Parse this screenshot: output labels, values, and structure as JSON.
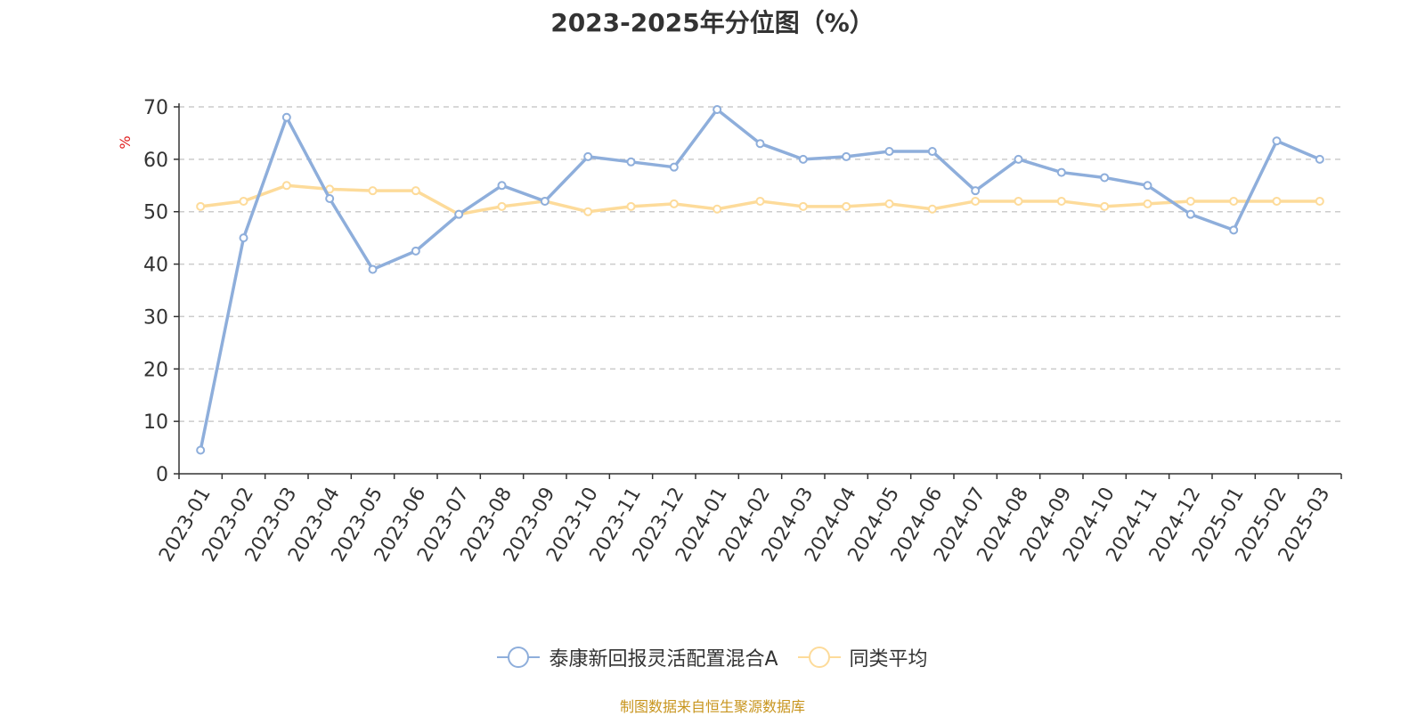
{
  "title": "2023-2025年分位图（%）",
  "source": "制图数据来自恒生聚源数据库",
  "chart_data": {
    "type": "line",
    "ylabel": "%",
    "ylim": [
      0,
      70
    ],
    "yticks": [
      0,
      10,
      20,
      30,
      40,
      50,
      60,
      70
    ],
    "grid": true,
    "legend_position": "bottom",
    "categories": [
      "2023-01",
      "2023-02",
      "2023-03",
      "2023-04",
      "2023-05",
      "2023-06",
      "2023-07",
      "2023-08",
      "2023-09",
      "2023-10",
      "2023-11",
      "2023-12",
      "2024-01",
      "2024-02",
      "2024-03",
      "2024-04",
      "2024-05",
      "2024-06",
      "2024-07",
      "2024-08",
      "2024-09",
      "2024-10",
      "2024-11",
      "2024-12",
      "2025-01",
      "2025-02",
      "2025-03"
    ],
    "series": [
      {
        "name": "泰康新回报灵活配置混合A",
        "color": "#8eaedb",
        "values": [
          4.5,
          45,
          68,
          52.5,
          39,
          42.5,
          49.5,
          55,
          52,
          60.5,
          59.5,
          58.5,
          69.5,
          63,
          60,
          60.5,
          61.5,
          61.5,
          54,
          60,
          57.5,
          56.5,
          55,
          49.5,
          46.5,
          63.5,
          60
        ]
      },
      {
        "name": "同类平均",
        "color": "#fddb9a",
        "values": [
          51,
          52,
          55,
          54.3,
          54,
          54,
          49.5,
          51,
          52,
          50,
          51,
          51.5,
          50.5,
          52,
          51,
          51,
          51.5,
          50.5,
          52,
          52,
          52,
          51,
          51.5,
          52,
          52,
          52,
          52
        ]
      }
    ]
  }
}
